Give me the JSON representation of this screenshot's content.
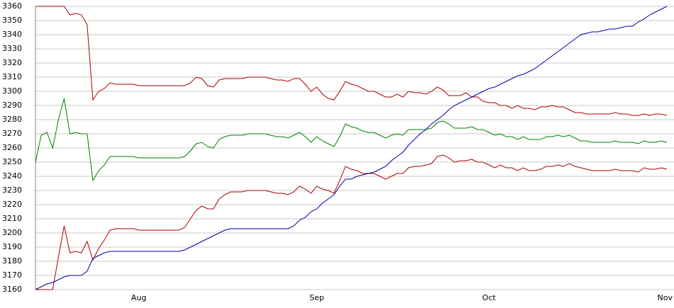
{
  "chart_data": {
    "type": "line",
    "categories": [
      null,
      null,
      null,
      null,
      null,
      null,
      null,
      null,
      null,
      null,
      null,
      null,
      null,
      null,
      null,
      null,
      null,
      null,
      "Aug",
      null,
      null,
      null,
      null,
      null,
      null,
      null,
      null,
      null,
      null,
      null,
      null,
      null,
      null,
      null,
      null,
      null,
      null,
      null,
      null,
      null,
      null,
      null,
      null,
      null,
      null,
      null,
      null,
      null,
      null,
      "Sep",
      null,
      null,
      null,
      null,
      null,
      null,
      null,
      null,
      null,
      null,
      null,
      null,
      null,
      null,
      null,
      null,
      null,
      null,
      null,
      null,
      null,
      null,
      null,
      null,
      null,
      null,
      null,
      null,
      null,
      "Oct",
      null,
      null,
      null,
      null,
      null,
      null,
      null,
      null,
      null,
      null,
      null,
      null,
      null,
      null,
      null,
      null,
      null,
      null,
      null,
      null,
      null,
      null,
      null,
      null,
      null,
      null,
      null,
      null,
      null,
      null,
      "Nov"
    ],
    "series": [
      {
        "color": "#aa0000",
        "values": [
          3360,
          3360,
          3360,
          3360,
          3360,
          3360,
          3354,
          3355,
          3354,
          3347,
          3294,
          3300,
          3302,
          3306,
          3305,
          3305,
          3305,
          3305,
          3304,
          3304,
          3304,
          3304,
          3304,
          3304,
          3304,
          3304,
          3304,
          3306,
          3310,
          3309,
          3304,
          3303,
          3308,
          3309,
          3309,
          3309,
          3309,
          3310,
          3310,
          3310,
          3310,
          3309,
          3308,
          3308,
          3307,
          3309,
          3309,
          3305,
          3300,
          3303,
          3298,
          3295,
          3294,
          3300,
          3307,
          3305,
          3304,
          3302,
          3300,
          3300,
          3298,
          3296,
          3296,
          3298,
          3296,
          3300,
          3299,
          3299,
          3298,
          3300,
          3303,
          3301,
          3297,
          3297,
          3297,
          3299,
          3296,
          3296,
          3293,
          3292,
          3292,
          3290,
          3290,
          3288,
          3290,
          3288,
          3288,
          3287,
          3289,
          3289,
          3290,
          3289,
          3289,
          3287,
          3285,
          3285,
          3284,
          3284,
          3284,
          3284,
          3284,
          3285,
          3284,
          3284,
          3283,
          3283,
          3284,
          3283,
          3284,
          3284,
          3283
        ]
      },
      {
        "color": "#008000",
        "values": [
          3250,
          3269,
          3271,
          3260,
          3280,
          3295,
          3270,
          3271,
          3270,
          3270,
          3237,
          3244,
          3248,
          3254,
          3254,
          3254,
          3254,
          3254,
          3253,
          3253,
          3253,
          3253,
          3253,
          3253,
          3253,
          3253,
          3254,
          3258,
          3263,
          3264,
          3261,
          3260,
          3266,
          3268,
          3269,
          3269,
          3269,
          3270,
          3270,
          3270,
          3270,
          3269,
          3268,
          3268,
          3267,
          3269,
          3271,
          3268,
          3264,
          3268,
          3265,
          3263,
          3261,
          3268,
          3277,
          3275,
          3274,
          3272,
          3271,
          3271,
          3269,
          3267,
          3269,
          3270,
          3269,
          3273,
          3273,
          3273,
          3273,
          3274,
          3278,
          3279,
          3277,
          3274,
          3274,
          3274,
          3275,
          3273,
          3273,
          3271,
          3269,
          3270,
          3268,
          3268,
          3266,
          3268,
          3266,
          3266,
          3266,
          3268,
          3268,
          3269,
          3268,
          3269,
          3267,
          3265,
          3265,
          3264,
          3264,
          3264,
          3264,
          3265,
          3264,
          3264,
          3264,
          3263,
          3265,
          3264,
          3264,
          3265,
          3264
        ]
      },
      {
        "color": "#aa0000",
        "values": [
          3160,
          3160,
          3160,
          3160,
          3183,
          3205,
          3186,
          3187,
          3186,
          3194,
          3181,
          3189,
          3195,
          3202,
          3203,
          3203,
          3203,
          3203,
          3202,
          3202,
          3202,
          3202,
          3202,
          3202,
          3202,
          3202,
          3204,
          3210,
          3216,
          3219,
          3217,
          3217,
          3224,
          3227,
          3229,
          3229,
          3229,
          3230,
          3230,
          3230,
          3230,
          3229,
          3228,
          3228,
          3227,
          3229,
          3233,
          3231,
          3228,
          3233,
          3231,
          3230,
          3228,
          3237,
          3247,
          3245,
          3244,
          3242,
          3242,
          3242,
          3240,
          3238,
          3240,
          3242,
          3242,
          3246,
          3247,
          3247,
          3248,
          3249,
          3254,
          3255,
          3253,
          3250,
          3251,
          3251,
          3252,
          3250,
          3250,
          3248,
          3246,
          3248,
          3246,
          3246,
          3244,
          3246,
          3244,
          3244,
          3245,
          3247,
          3247,
          3248,
          3247,
          3249,
          3247,
          3246,
          3245,
          3244,
          3244,
          3244,
          3244,
          3245,
          3244,
          3244,
          3244,
          3243,
          3246,
          3245,
          3245,
          3246,
          3245
        ]
      },
      {
        "color": "#0000aa",
        "values": [
          3160,
          3162,
          3164,
          3165,
          3167,
          3169,
          3170,
          3170,
          3170,
          3173,
          3182,
          3184,
          3186,
          3187,
          3187,
          3187,
          3187,
          3187,
          3187,
          3187,
          3187,
          3187,
          3187,
          3187,
          3187,
          3187,
          3188,
          3190,
          3192,
          3194,
          3196,
          3198,
          3200,
          3202,
          3203,
          3203,
          3203,
          3203,
          3203,
          3203,
          3203,
          3203,
          3203,
          3203,
          3203,
          3205,
          3209,
          3211,
          3215,
          3217,
          3221,
          3224,
          3227,
          3233,
          3238,
          3238,
          3240,
          3241,
          3242,
          3243,
          3245,
          3247,
          3251,
          3254,
          3257,
          3262,
          3266,
          3270,
          3273,
          3277,
          3280,
          3283,
          3287,
          3290,
          3292,
          3294,
          3296,
          3298,
          3300,
          3302,
          3303,
          3305,
          3307,
          3309,
          3311,
          3312,
          3314,
          3316,
          3319,
          3322,
          3325,
          3328,
          3331,
          3334,
          3337,
          3340,
          3341,
          3342,
          3342,
          3343,
          3344,
          3344,
          3345,
          3346,
          3346,
          3349,
          3351,
          3354,
          3356,
          3358,
          3360
        ]
      }
    ],
    "ylim": [
      3160,
      3360
    ],
    "yticks": [
      3160,
      3170,
      3180,
      3190,
      3200,
      3210,
      3220,
      3230,
      3240,
      3250,
      3260,
      3270,
      3280,
      3290,
      3300,
      3310,
      3320,
      3330,
      3340,
      3350,
      3360
    ],
    "grid": true
  }
}
